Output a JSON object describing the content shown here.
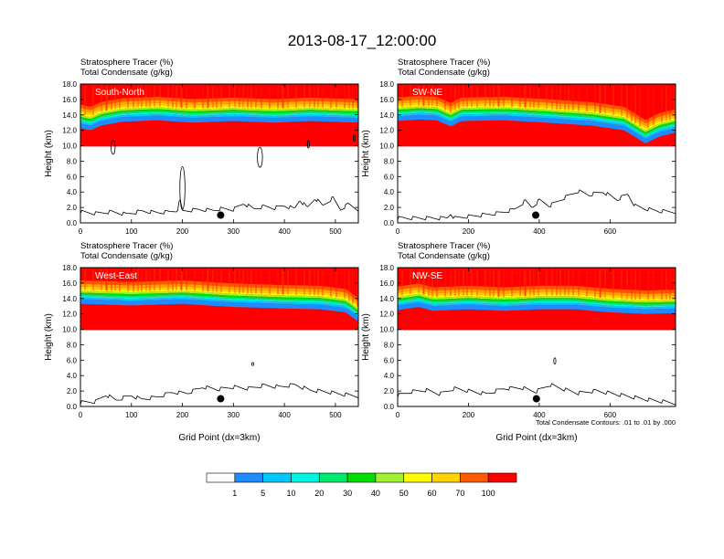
{
  "page": {
    "title": "2013-08-17_12:00:00"
  },
  "note": "Total Condensate Contours: .01 to .01 by .000",
  "colors": {
    "bins": [
      "#ffffff",
      "#1e8cff",
      "#00c8ff",
      "#00f5e0",
      "#00ea70",
      "#00e000",
      "#a0f030",
      "#ffff00",
      "#ffd200",
      "#ffa500",
      "#ff5a00",
      "#ff0000"
    ]
  },
  "colorbar": {
    "labels": [
      "1",
      "5",
      "10",
      "20",
      "30",
      "40",
      "50",
      "60",
      "70",
      "100"
    ]
  },
  "chart_data": [
    {
      "type": "filled-contour",
      "panel_label": "South-North",
      "title_line1": "Stratosphere Tracer   (%)",
      "title_line2": "Total Condensate   (g/kg)",
      "xlabel": "",
      "ylabel": "Height (km)",
      "xlim": [
        0,
        545
      ],
      "ylim": [
        0,
        18
      ],
      "x_ticks": [
        "0",
        "100",
        "200",
        "300",
        "400",
        "500"
      ],
      "y_ticks": [
        "0.0",
        "2.0",
        "4.0",
        "6.0",
        "8.0",
        "10.0",
        "12.0",
        "14.0",
        "16.0",
        "18.0"
      ],
      "tropopause_km": [
        [
          0,
          12.3
        ],
        [
          20,
          12.0
        ],
        [
          40,
          12.6
        ],
        [
          80,
          13.1
        ],
        [
          150,
          13.3
        ],
        [
          220,
          13.0
        ],
        [
          300,
          13.2
        ],
        [
          380,
          13.0
        ],
        [
          450,
          13.2
        ],
        [
          545,
          13.0
        ]
      ],
      "terrain_km": [
        [
          0,
          1.2
        ],
        [
          30,
          1.0
        ],
        [
          60,
          1.2
        ],
        [
          90,
          0.9
        ],
        [
          120,
          1.3
        ],
        [
          150,
          1.1
        ],
        [
          175,
          1.2
        ],
        [
          190,
          1.4
        ],
        [
          195,
          2.8
        ],
        [
          200,
          1.3
        ],
        [
          230,
          1.5
        ],
        [
          260,
          1.4
        ],
        [
          275,
          1.6
        ],
        [
          300,
          1.5
        ],
        [
          320,
          2.3
        ],
        [
          340,
          1.6
        ],
        [
          360,
          1.9
        ],
        [
          380,
          1.7
        ],
        [
          400,
          2.0
        ],
        [
          420,
          1.6
        ],
        [
          430,
          2.8
        ],
        [
          445,
          1.7
        ],
        [
          460,
          3.0
        ],
        [
          475,
          2.0
        ],
        [
          495,
          3.0
        ],
        [
          510,
          1.5
        ],
        [
          525,
          2.2
        ],
        [
          545,
          1.5
        ]
      ],
      "marker": {
        "x": 275,
        "y_km": 1.0
      },
      "condensate_contours": [
        {
          "cx": 64,
          "cy_km": 9.8,
          "rx": 4,
          "ry_km": 0.9
        },
        {
          "cx": 200,
          "cy_km": 4.5,
          "rx": 5,
          "ry_km": 2.8
        },
        {
          "cx": 352,
          "cy_km": 8.5,
          "rx": 5,
          "ry_km": 1.3
        },
        {
          "cx": 447,
          "cy_km": 10.2,
          "rx": 2,
          "ry_km": 0.5
        },
        {
          "cx": 537,
          "cy_km": 11.0,
          "rx": 2,
          "ry_km": 0.4
        }
      ]
    },
    {
      "type": "filled-contour",
      "panel_label": "SW-NE",
      "title_line1": "Stratosphere Tracer   (%)",
      "title_line2": "Total Condensate   (g/kg)",
      "xlabel": "",
      "ylabel": "Height (km)",
      "xlim": [
        0,
        785
      ],
      "ylim": [
        0,
        18
      ],
      "x_ticks": [
        "0",
        "200",
        "400",
        "600"
      ],
      "y_ticks": [
        "0.0",
        "2.0",
        "4.0",
        "6.0",
        "8.0",
        "10.0",
        "12.0",
        "14.0",
        "16.0",
        "18.0"
      ],
      "tropopause_km": [
        [
          0,
          13.2
        ],
        [
          60,
          13.4
        ],
        [
          110,
          13.3
        ],
        [
          150,
          12.5
        ],
        [
          180,
          13.2
        ],
        [
          300,
          13.3
        ],
        [
          420,
          13.0
        ],
        [
          550,
          12.6
        ],
        [
          640,
          12.0
        ],
        [
          700,
          10.3
        ],
        [
          740,
          11.2
        ],
        [
          785,
          11.7
        ]
      ],
      "terrain_km": [
        [
          0,
          0.4
        ],
        [
          140,
          0.4
        ],
        [
          150,
          1.0
        ],
        [
          160,
          0.4
        ],
        [
          220,
          0.7
        ],
        [
          280,
          1.0
        ],
        [
          330,
          1.5
        ],
        [
          360,
          2.6
        ],
        [
          380,
          1.8
        ],
        [
          400,
          2.7
        ],
        [
          430,
          2.0
        ],
        [
          470,
          3.0
        ],
        [
          510,
          3.9
        ],
        [
          540,
          3.4
        ],
        [
          580,
          3.8
        ],
        [
          620,
          2.8
        ],
        [
          650,
          3.5
        ],
        [
          670,
          2.0
        ],
        [
          700,
          1.6
        ],
        [
          740,
          1.3
        ],
        [
          785,
          1.2
        ]
      ],
      "marker": {
        "x": 390,
        "y_km": 1.0
      },
      "condensate_contours": []
    },
    {
      "type": "filled-contour",
      "panel_label": "West-East",
      "title_line1": "Stratosphere Tracer   (%)",
      "title_line2": "Total Condensate   (g/kg)",
      "xlabel": "Grid Point (dx=3km)",
      "ylabel": "Height (km)",
      "xlim": [
        0,
        545
      ],
      "ylim": [
        0,
        18
      ],
      "x_ticks": [
        "0",
        "100",
        "200",
        "300",
        "400",
        "500"
      ],
      "y_ticks": [
        "0.0",
        "2.0",
        "4.0",
        "6.0",
        "8.0",
        "10.0",
        "12.0",
        "14.0",
        "16.0",
        "18.0"
      ],
      "tropopause_km": [
        [
          0,
          13.3
        ],
        [
          100,
          13.1
        ],
        [
          200,
          13.3
        ],
        [
          300,
          12.9
        ],
        [
          400,
          12.7
        ],
        [
          470,
          12.6
        ],
        [
          520,
          12.2
        ],
        [
          545,
          11.0
        ]
      ],
      "terrain_km": [
        [
          0,
          0.3
        ],
        [
          30,
          0.4
        ],
        [
          50,
          1.3
        ],
        [
          70,
          0.6
        ],
        [
          100,
          1.2
        ],
        [
          120,
          0.7
        ],
        [
          150,
          1.0
        ],
        [
          180,
          1.6
        ],
        [
          210,
          1.5
        ],
        [
          240,
          2.3
        ],
        [
          270,
          2.0
        ],
        [
          300,
          2.3
        ],
        [
          330,
          2.1
        ],
        [
          360,
          2.5
        ],
        [
          390,
          2.3
        ],
        [
          420,
          2.6
        ],
        [
          450,
          1.9
        ],
        [
          480,
          1.7
        ],
        [
          510,
          1.4
        ],
        [
          545,
          1.1
        ]
      ],
      "marker": {
        "x": 275,
        "y_km": 1.0
      },
      "condensate_contours": [
        {
          "cx": 338,
          "cy_km": 5.5,
          "rx": 1,
          "ry_km": 0.2
        }
      ]
    },
    {
      "type": "filled-contour",
      "panel_label": "NW-SE",
      "title_line1": "Stratosphere Tracer   (%)",
      "title_line2": "Total Condensate   (g/kg)",
      "xlabel": "Grid Point (dx=3km)",
      "ylabel": "Height (km)",
      "xlim": [
        0,
        785
      ],
      "ylim": [
        0,
        18
      ],
      "x_ticks": [
        "0",
        "200",
        "400",
        "600"
      ],
      "y_ticks": [
        "0.0",
        "2.0",
        "4.0",
        "6.0",
        "8.0",
        "10.0",
        "12.0",
        "14.0",
        "16.0",
        "18.0"
      ],
      "tropopause_km": [
        [
          0,
          12.5
        ],
        [
          60,
          12.9
        ],
        [
          100,
          12.4
        ],
        [
          200,
          12.6
        ],
        [
          300,
          12.4
        ],
        [
          400,
          12.6
        ],
        [
          500,
          12.6
        ],
        [
          600,
          12.2
        ],
        [
          700,
          12.0
        ],
        [
          785,
          12.1
        ]
      ],
      "terrain_km": [
        [
          0,
          1.2
        ],
        [
          40,
          1.7
        ],
        [
          80,
          1.9
        ],
        [
          120,
          1.4
        ],
        [
          160,
          2.1
        ],
        [
          200,
          1.8
        ],
        [
          250,
          1.4
        ],
        [
          300,
          2.1
        ],
        [
          350,
          2.2
        ],
        [
          390,
          1.7
        ],
        [
          430,
          2.6
        ],
        [
          470,
          2.0
        ],
        [
          510,
          1.5
        ],
        [
          560,
          1.8
        ],
        [
          600,
          1.5
        ],
        [
          650,
          1.1
        ],
        [
          700,
          0.7
        ],
        [
          750,
          0.4
        ],
        [
          785,
          0.2
        ]
      ],
      "marker": {
        "x": 392,
        "y_km": 1.0
      },
      "condensate_contours": [
        {
          "cx": 444,
          "cy_km": 5.9,
          "rx": 2,
          "ry_km": 0.4
        }
      ]
    }
  ]
}
